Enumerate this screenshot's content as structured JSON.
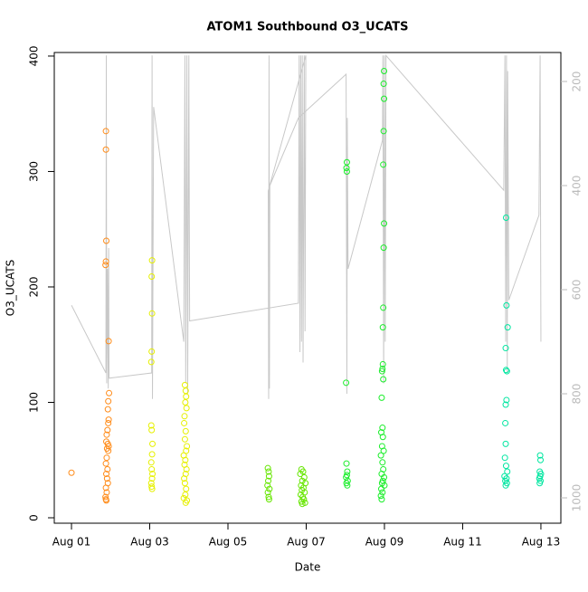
{
  "chart_data": {
    "type": "scatter",
    "title": "ATOM1 Southbound O3_UCATS",
    "x_label": "Date",
    "y_label": "O3_UCATS",
    "xlim": [
      0.56,
      13.51
    ],
    "ylim": [
      -4.7,
      403.1
    ],
    "y2lim": [
      1048.7,
      144.3
    ],
    "xticks": [
      {
        "value": 1,
        "label": "Aug 01"
      },
      {
        "value": 3,
        "label": "Aug 03"
      },
      {
        "value": 5,
        "label": "Aug 05"
      },
      {
        "value": 7,
        "label": "Aug 07"
      },
      {
        "value": 9,
        "label": "Aug 09"
      },
      {
        "value": 11,
        "label": "Aug 11"
      },
      {
        "value": 13,
        "label": "Aug 13"
      }
    ],
    "yticks": [
      0,
      100,
      200,
      300,
      400
    ],
    "y2ticks": [
      200,
      400,
      600,
      800,
      1000
    ],
    "series": [
      {
        "color": "#ff8c1a",
        "x": [
          1.0,
          1.88,
          1.88,
          1.89,
          1.88,
          1.87,
          1.95,
          1.96,
          1.94,
          1.93,
          1.95,
          1.94,
          1.92,
          1.9,
          1.89,
          1.93,
          1.95,
          1.91,
          1.94,
          1.9,
          1.88,
          1.92,
          1.89,
          1.91,
          1.93,
          1.88,
          1.9,
          1.87,
          1.88,
          1.89
        ],
        "values": [
          39,
          335,
          319,
          240,
          222,
          219,
          153,
          108,
          101,
          94,
          85,
          82,
          76,
          72,
          66,
          64,
          62,
          60,
          58,
          52,
          47,
          42,
          38,
          34,
          30,
          26,
          22,
          18,
          16,
          15
        ]
      },
      {
        "color": "#e6f000",
        "x": [
          3.06,
          3.05,
          3.06,
          3.05,
          3.04,
          3.04,
          3.05,
          3.07,
          3.06,
          3.04,
          3.05,
          3.07,
          3.06,
          3.04,
          3.05,
          3.06,
          3.9,
          3.92,
          3.93,
          3.91,
          3.94,
          3.89,
          3.88,
          3.92,
          3.9,
          3.95,
          3.93,
          3.87,
          3.91,
          3.89,
          3.94,
          3.92,
          3.88,
          3.9,
          3.93,
          3.91,
          3.87,
          3.95,
          3.92
        ],
        "values": [
          223,
          209,
          177,
          144,
          135,
          80,
          76,
          64,
          55,
          48,
          42,
          38,
          34,
          30,
          27,
          25,
          115,
          110,
          105,
          100,
          95,
          88,
          82,
          75,
          68,
          62,
          58,
          54,
          50,
          46,
          42,
          38,
          34,
          30,
          25,
          20,
          17,
          15,
          13
        ]
      },
      {
        "color": "#66e600",
        "x": [
          6.02,
          6.04,
          6.05,
          6.03,
          6.01,
          6.06,
          6.02,
          6.04,
          6.05,
          6.88,
          6.92,
          6.85,
          6.95,
          6.9,
          6.98,
          6.87,
          6.93,
          6.89,
          6.96,
          6.86,
          6.91,
          6.94,
          6.88,
          6.97,
          6.9
        ],
        "values": [
          43,
          40,
          36,
          32,
          28,
          25,
          22,
          18,
          16,
          42,
          40,
          38,
          35,
          32,
          30,
          28,
          26,
          24,
          22,
          20,
          18,
          16,
          14,
          13,
          12
        ]
      },
      {
        "color": "#1aee2a",
        "x": [
          8.04,
          8.03,
          8.04,
          8.02,
          8.03,
          8.05,
          8.04,
          8.02,
          8.06,
          8.03,
          8.05,
          8.99,
          8.98,
          8.99,
          8.98,
          8.97,
          8.99,
          8.98,
          8.97,
          8.96,
          8.96,
          8.95,
          8.94,
          8.97,
          8.93,
          8.95,
          8.92,
          8.96,
          8.94,
          8.98,
          8.91,
          8.95,
          8.97,
          8.93,
          8.99,
          8.96,
          8.94,
          9.0,
          8.92,
          8.95,
          8.91,
          8.93
        ],
        "values": [
          308,
          303,
          300,
          117,
          47,
          40,
          37,
          35,
          32,
          30,
          28,
          387,
          376,
          363,
          335,
          306,
          255,
          234,
          182,
          165,
          133,
          129,
          127,
          120,
          104,
          78,
          74,
          70,
          62,
          58,
          54,
          48,
          42,
          38,
          35,
          32,
          30,
          28,
          25,
          22,
          19,
          16
        ]
      },
      {
        "color": "#00e6a0",
        "x": [
          12.11,
          12.12,
          12.15,
          12.1,
          12.11,
          12.13,
          12.12,
          12.1,
          12.09,
          12.1,
          12.08,
          12.11,
          12.14,
          12.07,
          12.12,
          12.09,
          12.13,
          12.1,
          12.98,
          12.99,
          12.97,
          13.0,
          12.98,
          12.96,
          12.99,
          12.97
        ],
        "values": [
          260,
          184,
          165,
          147,
          128,
          127,
          102,
          98,
          82,
          64,
          52,
          45,
          40,
          36,
          34,
          32,
          30,
          28,
          54,
          50,
          40,
          38,
          36,
          34,
          32,
          30
        ]
      },
      {
        "type": "line",
        "axis": "y2",
        "color": "#c8c8c8",
        "x": [
          1.0,
          1.88,
          1.89,
          1.9,
          1.92,
          1.94,
          1.95,
          1.96,
          3.05,
          3.06,
          3.07,
          3.1,
          3.87,
          3.9,
          3.92,
          3.95,
          3.97,
          4.0,
          4.02,
          6.8,
          6.82,
          6.84,
          6.86,
          6.88,
          6.9,
          6.92,
          6.95,
          6.97,
          6.99,
          6.03,
          6.04,
          6.05,
          6.06,
          6.07,
          6.8,
          8.02,
          8.04,
          8.05,
          8.07,
          8.95,
          8.96,
          8.98,
          9.0,
          9.02,
          9.04,
          12.05,
          12.08,
          12.1,
          12.12,
          12.14,
          12.15,
          12.18,
          12.95,
          12.98,
          13.0
        ],
        "values": [
          630,
          760,
          150,
          780,
          560,
          790,
          520,
          770,
          760,
          150,
          810,
          249,
          700,
          150,
          780,
          150,
          800,
          150,
          660,
          626,
          150,
          720,
          150,
          700,
          150,
          740,
          150,
          680,
          150,
          410,
          810,
          150,
          790,
          400,
          270,
          186,
          800,
          270,
          560,
          313,
          150,
          780,
          150,
          700,
          150,
          409,
          150,
          700,
          150,
          760,
          180,
          620,
          457,
          150,
          700
        ]
      }
    ]
  }
}
